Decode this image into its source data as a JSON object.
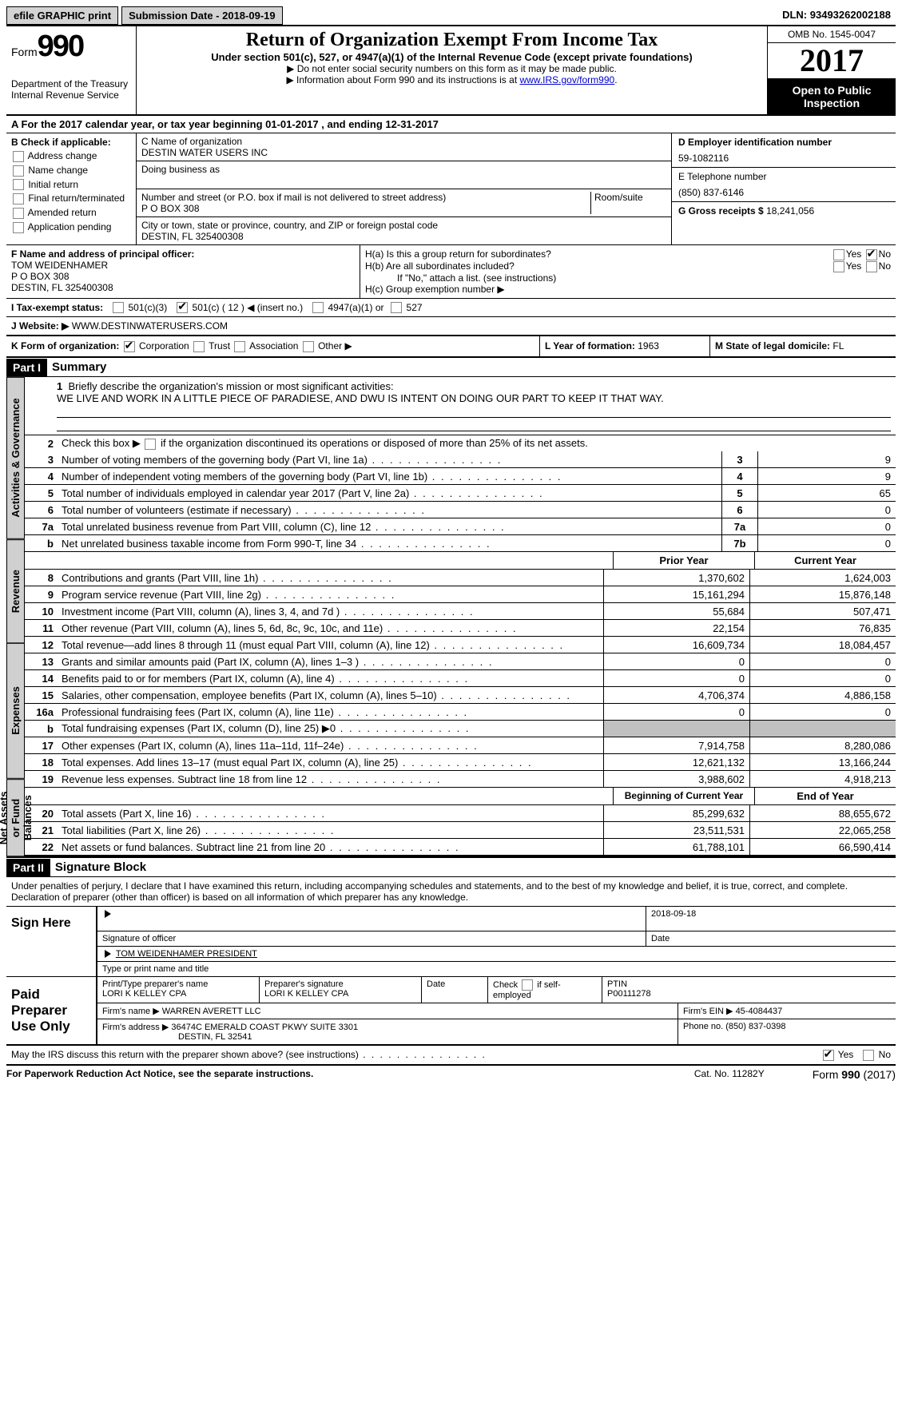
{
  "topbar": {
    "efile": "efile GRAPHIC print",
    "subdate_label": "Submission Date - ",
    "subdate": "2018-09-19",
    "dln_label": "DLN: ",
    "dln": "93493262002188"
  },
  "header": {
    "form_label": "Form",
    "form_num": "990",
    "dept": "Department of the Treasury",
    "irs": "Internal Revenue Service",
    "title": "Return of Organization Exempt From Income Tax",
    "sub": "Under section 501(c), 527, or 4947(a)(1) of the Internal Revenue Code (except private foundations)",
    "note1": "▶ Do not enter social security numbers on this form as it may be made public.",
    "note2_pre": "▶ Information about Form 990 and its instructions is at ",
    "note2_link": "www.IRS.gov/form990",
    "omb": "OMB No. 1545-0047",
    "year": "2017",
    "open": "Open to Public Inspection"
  },
  "a_line": "A  For the 2017 calendar year, or tax year beginning 01-01-2017    , and ending 12-31-2017",
  "b": {
    "title": "B Check if applicable:",
    "items": [
      "Address change",
      "Name change",
      "Initial return",
      "Final return/terminated",
      "Amended return",
      "Application pending"
    ]
  },
  "c": {
    "name_label": "C Name of organization",
    "name": "DESTIN WATER USERS INC",
    "dba_label": "Doing business as",
    "addr_label": "Number and street (or P.O. box if mail is not delivered to street address)",
    "room_label": "Room/suite",
    "addr": "P O BOX 308",
    "city_label": "City or town, state or province, country, and ZIP or foreign postal code",
    "city": "DESTIN, FL  325400308"
  },
  "d": {
    "ein_label": "D Employer identification number",
    "ein": "59-1082116",
    "tel_label": "E Telephone number",
    "tel": "(850) 837-6146",
    "gross_label": "G Gross receipts $ ",
    "gross": "18,241,056"
  },
  "f": {
    "label": "F  Name and address of principal officer:",
    "name": "TOM WEIDENHAMER",
    "addr1": "P O BOX 308",
    "addr2": "DESTIN, FL  325400308"
  },
  "h": {
    "a": "H(a)  Is this a group return for subordinates?",
    "b": "H(b)  Are all subordinates included?",
    "b_note": "If \"No,\" attach a list. (see instructions)",
    "c": "H(c)  Group exemption number ▶"
  },
  "i": {
    "label": "I  Tax-exempt status:",
    "c12": "501(c) ( 12 ) ◀ (insert no.)"
  },
  "j": {
    "label": "J  Website: ▶",
    "val": "WWW.DESTINWATERUSERS.COM"
  },
  "k": {
    "label": "K Form of organization:"
  },
  "l": {
    "label": "L Year of formation: ",
    "val": "1963"
  },
  "m": {
    "label": "M State of legal domicile: ",
    "val": "FL"
  },
  "part1": {
    "header": "Part I",
    "title": "Summary",
    "line1_label": "Briefly describe the organization's mission or most significant activities:",
    "mission": "WE LIVE AND WORK IN A LITTLE PIECE OF PARADIESE, AND DWU IS INTENT ON DOING OUR PART TO KEEP IT THAT WAY.",
    "line2": "Check this box ▶        if the organization discontinued its operations or disposed of more than 25% of its net assets.",
    "lines_gov": [
      {
        "n": "3",
        "t": "Number of voting members of the governing body (Part VI, line 1a)",
        "c": "3",
        "v": "9"
      },
      {
        "n": "4",
        "t": "Number of independent voting members of the governing body (Part VI, line 1b)",
        "c": "4",
        "v": "9"
      },
      {
        "n": "5",
        "t": "Total number of individuals employed in calendar year 2017 (Part V, line 2a)",
        "c": "5",
        "v": "65"
      },
      {
        "n": "6",
        "t": "Total number of volunteers (estimate if necessary)",
        "c": "6",
        "v": "0"
      },
      {
        "n": "7a",
        "t": "Total unrelated business revenue from Part VIII, column (C), line 12",
        "c": "7a",
        "v": "0"
      },
      {
        "n": "b",
        "t": "Net unrelated business taxable income from Form 990-T, line 34",
        "c": "7b",
        "v": "0"
      }
    ],
    "col_prior": "Prior Year",
    "col_current": "Current Year",
    "revenue": [
      {
        "n": "8",
        "t": "Contributions and grants (Part VIII, line 1h)",
        "p": "1,370,602",
        "c": "1,624,003"
      },
      {
        "n": "9",
        "t": "Program service revenue (Part VIII, line 2g)",
        "p": "15,161,294",
        "c": "15,876,148"
      },
      {
        "n": "10",
        "t": "Investment income (Part VIII, column (A), lines 3, 4, and 7d )",
        "p": "55,684",
        "c": "507,471"
      },
      {
        "n": "11",
        "t": "Other revenue (Part VIII, column (A), lines 5, 6d, 8c, 9c, 10c, and 11e)",
        "p": "22,154",
        "c": "76,835"
      },
      {
        "n": "12",
        "t": "Total revenue—add lines 8 through 11 (must equal Part VIII, column (A), line 12)",
        "p": "16,609,734",
        "c": "18,084,457"
      }
    ],
    "expenses": [
      {
        "n": "13",
        "t": "Grants and similar amounts paid (Part IX, column (A), lines 1–3 )",
        "p": "0",
        "c": "0"
      },
      {
        "n": "14",
        "t": "Benefits paid to or for members (Part IX, column (A), line 4)",
        "p": "0",
        "c": "0"
      },
      {
        "n": "15",
        "t": "Salaries, other compensation, employee benefits (Part IX, column (A), lines 5–10)",
        "p": "4,706,374",
        "c": "4,886,158"
      },
      {
        "n": "16a",
        "t": "Professional fundraising fees (Part IX, column (A), line 11e)",
        "p": "0",
        "c": "0"
      },
      {
        "n": "b",
        "t": "Total fundraising expenses (Part IX, column (D), line 25) ▶0",
        "p": "",
        "c": "",
        "shaded": true
      },
      {
        "n": "17",
        "t": "Other expenses (Part IX, column (A), lines 11a–11d, 11f–24e)",
        "p": "7,914,758",
        "c": "8,280,086"
      },
      {
        "n": "18",
        "t": "Total expenses. Add lines 13–17 (must equal Part IX, column (A), line 25)",
        "p": "12,621,132",
        "c": "13,166,244"
      },
      {
        "n": "19",
        "t": "Revenue less expenses. Subtract line 18 from line 12",
        "p": "3,988,602",
        "c": "4,918,213B}"
      }
    ],
    "expenses_fixed": [
      {
        "n": "13",
        "t": "Grants and similar amounts paid (Part IX, column (A), lines 1–3 )",
        "p": "0",
        "c": "0"
      },
      {
        "n": "14",
        "t": "Benefits paid to or for members (Part IX, column (A), line 4)",
        "p": "0",
        "c": "0"
      },
      {
        "n": "15",
        "t": "Salaries, other compensation, employee benefits (Part IX, column (A), lines 5–10)",
        "p": "4,706,374",
        "c": "4,886,158"
      },
      {
        "n": "16a",
        "t": "Professional fundraising fees (Part IX, column (A), line 11e)",
        "p": "0",
        "c": "0"
      },
      {
        "n": "b",
        "t": "Total fundraising expenses (Part IX, column (D), line 25) ▶0",
        "p": "",
        "c": "",
        "shaded": true
      },
      {
        "n": "17",
        "t": "Other expenses (Part IX, column (A), lines 11a–11d, 11f–24e)",
        "p": "7,914,758",
        "c": "8,280,086"
      },
      {
        "n": "18",
        "t": "Total expenses. Add lines 13–17 (must equal Part IX, column (A), line 25)",
        "p": "12,621,132",
        "c": "13,166,244"
      },
      {
        "n": "19",
        "t": "Revenue less expenses. Subtract line 18 from line 12",
        "p": "3,988,602",
        "c": "4,918,213"
      }
    ],
    "col_begin": "Beginning of Current Year",
    "col_end": "End of Year",
    "netassets": [
      {
        "n": "20",
        "t": "Total assets (Part X, line 16)",
        "p": "85,299,632",
        "c": "88,655,672"
      },
      {
        "n": "21",
        "t": "Total liabilities (Part X, line 26)",
        "p": "23,511,531",
        "c": "22,065,258"
      },
      {
        "n": "22",
        "t": "Net assets or fund balances. Subtract line 21 from line 20",
        "p": "61,788,101",
        "c": "66,590,414"
      }
    ],
    "vtab_gov": "Activities & Governance",
    "vtab_rev": "Revenue",
    "vtab_exp": "Expenses",
    "vtab_net": "Net Assets or Fund Balances"
  },
  "part2": {
    "header": "Part II",
    "title": "Signature Block",
    "perjury": "Under penalties of perjury, I declare that I have examined this return, including accompanying schedules and statements, and to the best of my knowledge and belief, it is true, correct, and complete. Declaration of preparer (other than officer) is based on all information of which preparer has any knowledge.",
    "sign_here": "Sign Here",
    "sig_officer": "Signature of officer",
    "sig_date": "2018-09-18",
    "date_label": "Date",
    "officer_name": "TOM WEIDENHAMER PRESIDENT",
    "type_name": "Type or print name and title",
    "paid": "Paid Preparer Use Only",
    "prep_name_label": "Print/Type preparer's name",
    "prep_name": "LORI K KELLEY CPA",
    "prep_sig_label": "Preparer's signature",
    "prep_sig": "LORI K KELLEY CPA",
    "prep_date_label": "Date",
    "check_self": "Check        if self-employed",
    "ptin_label": "PTIN",
    "ptin": "P00111278",
    "firm_name_label": "Firm's name     ▶ ",
    "firm_name": "WARREN AVERETT LLC",
    "firm_ein_label": "Firm's EIN ▶ ",
    "firm_ein": "45-4084437",
    "firm_addr_label": "Firm's address ▶ ",
    "firm_addr": "36474C EMERALD COAST PKWY SUITE 3301",
    "firm_city": "DESTIN, FL  32541",
    "firm_phone_label": "Phone no. ",
    "firm_phone": "(850) 837-0398",
    "discuss": "May the IRS discuss this return with the preparer shown above? (see instructions)"
  },
  "footer": {
    "left": "For Paperwork Reduction Act Notice, see the separate instructions.",
    "mid": "Cat. No. 11282Y",
    "right_pre": "Form ",
    "right_bold": "990",
    "right_post": " (2017)"
  }
}
